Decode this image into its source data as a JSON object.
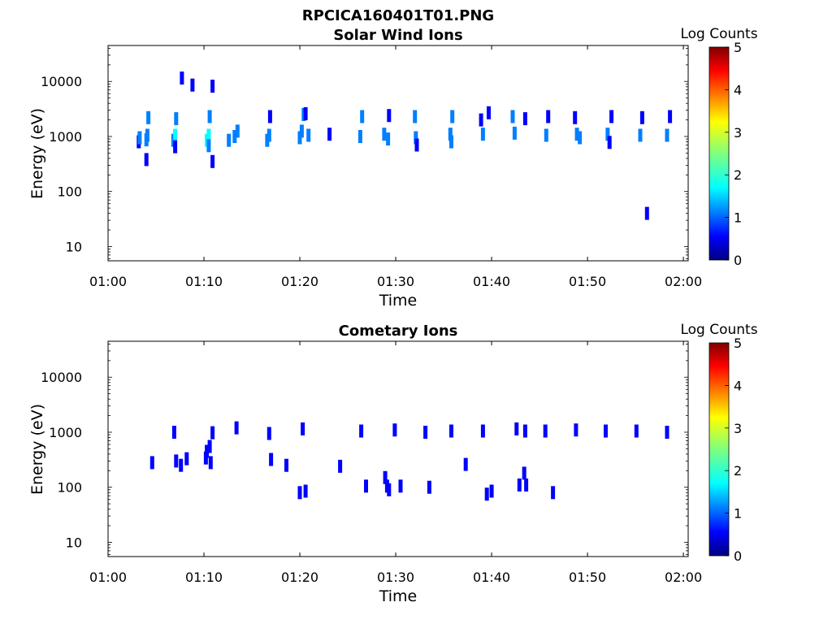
{
  "figure": {
    "title": "RPCICA160401T01.PNG"
  },
  "colors": {
    "colormap": [
      "#00007f",
      "#0000ff",
      "#007fff",
      "#00ffff",
      "#7fff7f",
      "#ffff00",
      "#ff7f00",
      "#ff0000",
      "#7f0000"
    ]
  },
  "chart_data": [
    {
      "type": "heatmap",
      "title": "Solar Wind Ions",
      "xlabel": "Time",
      "ylabel": "Energy (eV)",
      "x_ticks": [
        "01:00",
        "01:10",
        "01:20",
        "01:30",
        "01:40",
        "01:50",
        "02:00"
      ],
      "y_ticks": [
        "10",
        "100",
        "1000",
        "10000"
      ],
      "y_tick_values": [
        10,
        100,
        1000,
        10000
      ],
      "yscale": "log",
      "xlim_minutes": [
        0,
        60.5
      ],
      "ylim": [
        5.5,
        45000
      ],
      "grid": false,
      "colorbar": {
        "label": "Log Counts",
        "ticks": [
          "0",
          "1",
          "2",
          "3",
          "4",
          "5"
        ],
        "range": [
          0,
          5
        ]
      },
      "cells": [
        [
          3.2,
          800,
          0.7
        ],
        [
          3.3,
          950,
          1.0
        ],
        [
          4.0,
          380,
          0.8
        ],
        [
          4.0,
          870,
          1.5
        ],
        [
          4.1,
          1050,
          1.3
        ],
        [
          4.2,
          2200,
          1.1
        ],
        [
          6.8,
          850,
          1.2
        ],
        [
          7.0,
          1050,
          1.6
        ],
        [
          7.1,
          2100,
          1.0
        ],
        [
          7.0,
          650,
          0.9
        ],
        [
          7.7,
          11500,
          0.6
        ],
        [
          8.8,
          8600,
          0.5
        ],
        [
          10.3,
          850,
          1.8
        ],
        [
          10.5,
          1050,
          1.9
        ],
        [
          10.6,
          2300,
          1.5
        ],
        [
          10.5,
          680,
          1.2
        ],
        [
          10.9,
          8200,
          0.5
        ],
        [
          10.9,
          350,
          0.6
        ],
        [
          12.6,
          850,
          1.0
        ],
        [
          13.2,
          1000,
          1.2
        ],
        [
          13.5,
          1250,
          1.0
        ],
        [
          16.6,
          850,
          1.2
        ],
        [
          16.8,
          1050,
          1.1
        ],
        [
          16.9,
          2300,
          0.9
        ],
        [
          20.0,
          950,
          1.0
        ],
        [
          20.2,
          1250,
          1.3
        ],
        [
          20.4,
          2500,
          1.1
        ],
        [
          20.9,
          1050,
          1.2
        ],
        [
          20.6,
          2600,
          0.8
        ],
        [
          23.1,
          1100,
          0.9
        ],
        [
          26.3,
          1000,
          1.5
        ],
        [
          26.5,
          2300,
          1.3
        ],
        [
          28.8,
          1100,
          1.2
        ],
        [
          29.2,
          900,
          1.0
        ],
        [
          29.3,
          2400,
          0.9
        ],
        [
          32.0,
          2300,
          1.0
        ],
        [
          32.1,
          950,
          1.3
        ],
        [
          32.2,
          700,
          0.9
        ],
        [
          35.7,
          1100,
          1.4
        ],
        [
          35.9,
          2300,
          1.2
        ],
        [
          35.8,
          800,
          1.0
        ],
        [
          38.9,
          2000,
          0.8
        ],
        [
          39.1,
          1100,
          1.0
        ],
        [
          39.7,
          2700,
          0.7
        ],
        [
          42.2,
          2300,
          1.2
        ],
        [
          42.4,
          1150,
          1.1
        ],
        [
          43.5,
          2100,
          0.6
        ],
        [
          45.7,
          1050,
          1.0
        ],
        [
          45.9,
          2300,
          0.9
        ],
        [
          48.7,
          2200,
          0.9
        ],
        [
          48.9,
          1100,
          1.2
        ],
        [
          49.2,
          950,
          1.0
        ],
        [
          52.1,
          1100,
          1.0
        ],
        [
          52.5,
          2300,
          0.9
        ],
        [
          52.3,
          780,
          0.8
        ],
        [
          55.5,
          1050,
          1.0
        ],
        [
          55.7,
          2200,
          0.9
        ],
        [
          56.2,
          40,
          0.7
        ],
        [
          58.3,
          1050,
          1.2
        ],
        [
          58.6,
          2300,
          0.9
        ]
      ]
    },
    {
      "type": "heatmap",
      "title": "Cometary Ions",
      "xlabel": "Time",
      "ylabel": "Energy (eV)",
      "x_ticks": [
        "01:00",
        "01:10",
        "01:20",
        "01:30",
        "01:40",
        "01:50",
        "02:00"
      ],
      "y_ticks": [
        "10",
        "100",
        "1000",
        "10000"
      ],
      "y_tick_values": [
        10,
        100,
        1000,
        10000
      ],
      "yscale": "log",
      "xlim_minutes": [
        0,
        60.5
      ],
      "ylim": [
        5.5,
        45000
      ],
      "grid": false,
      "colorbar": {
        "label": "Log Counts",
        "ticks": [
          "0",
          "1",
          "2",
          "3",
          "4",
          "5"
        ],
        "range": [
          0,
          5
        ]
      },
      "cells": [
        [
          4.6,
          280,
          0.6
        ],
        [
          6.9,
          1000,
          0.5
        ],
        [
          7.1,
          300,
          0.7
        ],
        [
          7.6,
          250,
          0.6
        ],
        [
          8.2,
          330,
          0.5
        ],
        [
          10.2,
          340,
          0.6
        ],
        [
          10.3,
          450,
          0.6
        ],
        [
          10.6,
          550,
          0.7
        ],
        [
          10.7,
          280,
          0.9
        ],
        [
          10.9,
          980,
          0.6
        ],
        [
          13.4,
          1200,
          0.5
        ],
        [
          16.8,
          950,
          0.5
        ],
        [
          17.0,
          320,
          0.5
        ],
        [
          18.6,
          250,
          0.5
        ],
        [
          20.0,
          80,
          0.5
        ],
        [
          20.3,
          1150,
          0.7
        ],
        [
          20.6,
          85,
          0.5
        ],
        [
          24.2,
          240,
          0.6
        ],
        [
          26.4,
          1050,
          0.8
        ],
        [
          26.9,
          105,
          0.6
        ],
        [
          28.9,
          150,
          0.6
        ],
        [
          29.1,
          105,
          0.6
        ],
        [
          29.3,
          90,
          0.5
        ],
        [
          29.9,
          1100,
          0.8
        ],
        [
          30.5,
          105,
          0.6
        ],
        [
          33.1,
          1000,
          0.5
        ],
        [
          33.5,
          100,
          0.5
        ],
        [
          35.8,
          1050,
          0.7
        ],
        [
          37.3,
          260,
          0.6
        ],
        [
          39.1,
          1050,
          0.6
        ],
        [
          39.5,
          75,
          0.5
        ],
        [
          40.0,
          85,
          0.5
        ],
        [
          42.6,
          1150,
          0.6
        ],
        [
          42.9,
          110,
          0.8
        ],
        [
          43.4,
          180,
          0.6
        ],
        [
          43.6,
          110,
          0.8
        ],
        [
          43.5,
          1050,
          0.5
        ],
        [
          45.6,
          1050,
          0.5
        ],
        [
          46.4,
          80,
          0.6
        ],
        [
          48.8,
          1100,
          0.6
        ],
        [
          51.9,
          1050,
          0.6
        ],
        [
          55.1,
          1050,
          0.5
        ],
        [
          58.3,
          1000,
          0.5
        ]
      ]
    }
  ]
}
